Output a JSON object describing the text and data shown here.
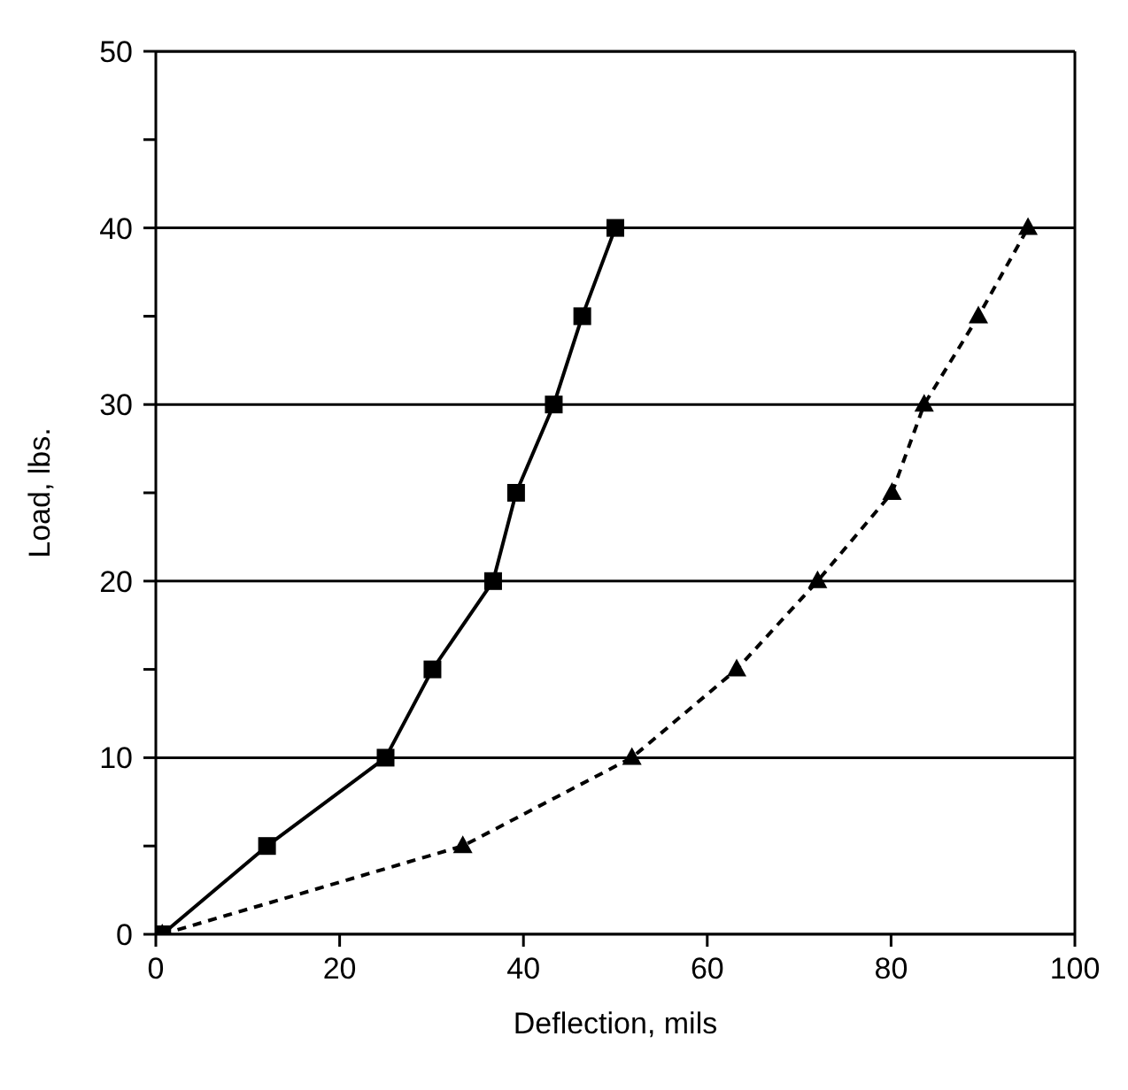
{
  "chart_data": {
    "type": "line",
    "xlabel": "Deflection, mils",
    "ylabel": "Load, lbs.",
    "xlim": [
      0,
      100
    ],
    "xticks": [
      0,
      20,
      40,
      60,
      80,
      100
    ],
    "ylim": [
      0,
      50
    ],
    "yticks": [
      0,
      {
        "value": 5,
        "label": null
      },
      10,
      {
        "value": 15,
        "label": null
      },
      20,
      {
        "value": 25,
        "label": null
      },
      30,
      {
        "value": 35,
        "label": null
      },
      40,
      {
        "value": 45,
        "label": null
      },
      50
    ],
    "grid": "y",
    "series": [
      {
        "color": "#000000",
        "marker": "square",
        "line_style": "solid",
        "x": [
          0.7,
          12.1,
          25,
          30.1,
          36.7,
          39.2,
          43.3,
          46.4,
          50
        ],
        "values": [
          0,
          5,
          10,
          15,
          20,
          25,
          30,
          35,
          40
        ]
      },
      {
        "color": "#000000",
        "marker": "triangle",
        "line_style": "dashed",
        "x": [
          0.7,
          33.4,
          51.8,
          63.2,
          72,
          80.1,
          83.6,
          89.5,
          94.9
        ],
        "values": [
          0,
          5,
          10,
          15,
          20,
          25,
          30,
          35,
          40
        ]
      }
    ]
  }
}
